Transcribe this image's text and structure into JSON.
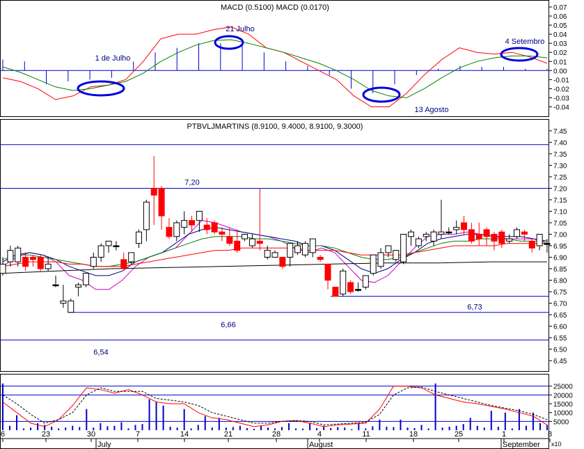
{
  "colors": {
    "border": "#000000",
    "blue": "#0000cc",
    "navy": "#000080",
    "red": "#ff0000",
    "green": "#008000",
    "magenta": "#cc00cc",
    "black": "#000000",
    "ellipse": "#0000dd"
  },
  "panels": {
    "macd": {
      "title": "MACD (0.5100) MACD (0.0170)",
      "annotations": [
        "1 de Julho",
        "21 Julho",
        "13 Agosto",
        "4 Setembro"
      ]
    },
    "price": {
      "title": "PTBVLJMARTINS (8.9100, 9.4000, 8.9100, 9.3000)",
      "levels": [
        {
          "value": 7.39,
          "label": ""
        },
        {
          "value": 7.2,
          "label": "7,20"
        },
        {
          "value": 6.73,
          "label": "6,73"
        },
        {
          "value": 6.66,
          "label": "6,66"
        },
        {
          "value": 6.54,
          "label": "6,54"
        }
      ]
    },
    "volume": {
      "multiplier_label": "x10"
    }
  },
  "x_axis": {
    "tick_labels": [
      "6",
      "23",
      "30",
      "7",
      "14",
      "21",
      "28",
      "4",
      "11",
      "18",
      "25",
      "1",
      "8"
    ],
    "month_labels": [
      "July",
      "August",
      "September"
    ]
  },
  "chart_data": [
    {
      "type": "line",
      "title": "MACD",
      "ylim": [
        -0.045,
        0.07
      ],
      "ticks": [
        0.07,
        0.06,
        0.05,
        0.04,
        0.03,
        0.02,
        0.01,
        0.0,
        -0.01,
        -0.02,
        -0.03,
        -0.04
      ],
      "tick_labels": [
        "0.07",
        "0.06",
        "0.05",
        "0.04",
        "0.03",
        "0.02",
        "0.01",
        "0.00",
        "-0.01",
        "-0.02",
        "-0.03",
        "-0.04"
      ],
      "series": [
        {
          "values": [
            -0.008,
            -0.012,
            -0.02,
            -0.032,
            -0.028,
            -0.018,
            -0.016,
            -0.01,
            0.01,
            0.035,
            0.04,
            0.04,
            0.045,
            0.048,
            0.04,
            0.025,
            0.02,
            0.01,
            0.0,
            -0.01,
            -0.028,
            -0.04,
            -0.04,
            -0.025,
            -0.005,
            0.012,
            0.025,
            0.02,
            0.018,
            0.02,
            0.015,
            0.008
          ]
        },
        {
          "values": [
            0.004,
            -0.002,
            -0.01,
            -0.018,
            -0.022,
            -0.02,
            -0.016,
            -0.012,
            -0.003,
            0.01,
            0.02,
            0.028,
            0.033,
            0.034,
            0.03,
            0.025,
            0.02,
            0.014,
            0.008,
            0.0,
            -0.01,
            -0.022,
            -0.028,
            -0.03,
            -0.02,
            -0.008,
            0.003,
            0.01,
            0.014,
            0.016,
            0.016,
            0.014
          ]
        },
        {
          "values": [
            0.012,
            0.01,
            -0.015,
            -0.012,
            -0.01,
            -0.008,
            0.01,
            0.02,
            0.025,
            0.03,
            0.03,
            0.028,
            0.02,
            0.01,
            0.005,
            -0.005,
            -0.02,
            -0.025,
            -0.015,
            -0.005,
            0.002,
            0.005,
            0.004,
            0.004,
            0.002,
            0.002
          ]
        }
      ]
    },
    {
      "type": "candlestick",
      "title": "PTBVLJMARTINS",
      "ylim": [
        6.42,
        7.48
      ],
      "ticks": [
        7.45,
        7.4,
        7.35,
        7.3,
        7.25,
        7.2,
        7.15,
        7.1,
        7.05,
        7.0,
        6.95,
        6.9,
        6.85,
        6.8,
        6.75,
        6.7,
        6.65,
        6.6,
        6.55,
        6.5,
        6.45
      ],
      "tick_labels": [
        "7.45",
        "7.40",
        "7.35",
        "7.30",
        "7.25",
        "7.20",
        "7.15",
        "7.10",
        "7.05",
        "7.00",
        "6.95",
        "6.90",
        "6.85",
        "6.80",
        "6.75",
        "6.70",
        "6.65",
        "6.60",
        "6.55",
        "6.50",
        "6.45"
      ],
      "candles": [
        {
          "o": 6.83,
          "h": 6.9,
          "l": 6.82,
          "c": 6.87
        },
        {
          "o": 6.88,
          "h": 6.95,
          "l": 6.86,
          "c": 6.93
        },
        {
          "o": 6.88,
          "h": 6.95,
          "l": 6.86,
          "c": 6.94
        },
        {
          "o": 6.9,
          "h": 6.92,
          "l": 6.84,
          "c": 6.86
        },
        {
          "o": 6.9,
          "h": 6.91,
          "l": 6.86,
          "c": 6.89
        },
        {
          "o": 6.9,
          "h": 6.91,
          "l": 6.84,
          "c": 6.85
        },
        {
          "o": 6.85,
          "h": 6.9,
          "l": 6.84,
          "c": 6.87
        },
        {
          "o": 6.78,
          "h": 6.82,
          "l": 6.77,
          "c": 6.78
        },
        {
          "o": 6.7,
          "h": 6.78,
          "l": 6.68,
          "c": 6.71
        },
        {
          "o": 6.66,
          "h": 6.72,
          "l": 6.66,
          "c": 6.71
        },
        {
          "o": 6.77,
          "h": 6.79,
          "l": 6.73,
          "c": 6.78
        },
        {
          "o": 6.78,
          "h": 6.83,
          "l": 6.77,
          "c": 6.83
        },
        {
          "o": 6.86,
          "h": 6.92,
          "l": 6.85,
          "c": 6.9
        },
        {
          "o": 6.9,
          "h": 6.96,
          "l": 6.88,
          "c": 6.95
        },
        {
          "o": 6.95,
          "h": 6.97,
          "l": 6.92,
          "c": 6.97
        },
        {
          "o": 6.95,
          "h": 6.97,
          "l": 6.93,
          "c": 6.95
        },
        {
          "o": 6.89,
          "h": 6.92,
          "l": 6.85,
          "c": 6.85
        },
        {
          "o": 6.88,
          "h": 6.92,
          "l": 6.87,
          "c": 6.92
        },
        {
          "o": 6.96,
          "h": 7.02,
          "l": 6.94,
          "c": 7.01
        },
        {
          "o": 7.02,
          "h": 7.15,
          "l": 6.97,
          "c": 7.14
        },
        {
          "o": 7.2,
          "h": 7.34,
          "l": 7.04,
          "c": 7.17
        },
        {
          "o": 7.2,
          "h": 7.21,
          "l": 7.02,
          "c": 7.08
        },
        {
          "o": 7.03,
          "h": 7.07,
          "l": 6.98,
          "c": 6.99
        },
        {
          "o": 6.99,
          "h": 7.06,
          "l": 6.97,
          "c": 7.05
        },
        {
          "o": 7.03,
          "h": 7.1,
          "l": 7.0,
          "c": 7.06
        },
        {
          "o": 7.06,
          "h": 7.08,
          "l": 7.01,
          "c": 7.04
        },
        {
          "o": 7.06,
          "h": 7.1,
          "l": 7.01,
          "c": 7.1
        },
        {
          "o": 7.04,
          "h": 7.07,
          "l": 7.0,
          "c": 7.02
        },
        {
          "o": 7.05,
          "h": 7.06,
          "l": 7.0,
          "c": 7.01
        },
        {
          "o": 7.01,
          "h": 7.03,
          "l": 6.97,
          "c": 7.0
        },
        {
          "o": 6.99,
          "h": 7.03,
          "l": 6.95,
          "c": 6.96
        },
        {
          "o": 6.97,
          "h": 7.02,
          "l": 6.92,
          "c": 6.93
        },
        {
          "o": 6.98,
          "h": 7.0,
          "l": 6.97,
          "c": 7.0
        },
        {
          "o": 6.95,
          "h": 7.0,
          "l": 6.94,
          "c": 6.98
        },
        {
          "o": 6.97,
          "h": 7.2,
          "l": 6.93,
          "c": 6.96
        },
        {
          "o": 6.9,
          "h": 6.95,
          "l": 6.89,
          "c": 6.93
        },
        {
          "o": 6.9,
          "h": 6.93,
          "l": 6.9,
          "c": 6.92
        },
        {
          "o": 6.9,
          "h": 6.9,
          "l": 6.85,
          "c": 6.86
        },
        {
          "o": 6.9,
          "h": 6.96,
          "l": 6.86,
          "c": 6.96
        },
        {
          "o": 6.92,
          "h": 6.97,
          "l": 6.91,
          "c": 6.95
        },
        {
          "o": 6.91,
          "h": 6.97,
          "l": 6.9,
          "c": 6.96
        },
        {
          "o": 6.92,
          "h": 6.98,
          "l": 6.9,
          "c": 6.98
        },
        {
          "o": 6.9,
          "h": 6.91,
          "l": 6.88,
          "c": 6.89
        },
        {
          "o": 6.87,
          "h": 6.87,
          "l": 6.76,
          "c": 6.8
        },
        {
          "o": 6.77,
          "h": 6.77,
          "l": 6.73,
          "c": 6.73
        },
        {
          "o": 6.74,
          "h": 6.85,
          "l": 6.73,
          "c": 6.84
        },
        {
          "o": 6.79,
          "h": 6.8,
          "l": 6.74,
          "c": 6.75
        },
        {
          "o": 6.76,
          "h": 6.79,
          "l": 6.75,
          "c": 6.76
        },
        {
          "o": 6.77,
          "h": 6.82,
          "l": 6.76,
          "c": 6.82
        },
        {
          "o": 6.83,
          "h": 6.91,
          "l": 6.82,
          "c": 6.91
        },
        {
          "o": 6.86,
          "h": 6.94,
          "l": 6.85,
          "c": 6.92
        },
        {
          "o": 6.92,
          "h": 6.95,
          "l": 6.9,
          "c": 6.95
        },
        {
          "o": 6.89,
          "h": 6.93,
          "l": 6.88,
          "c": 6.93
        },
        {
          "o": 6.88,
          "h": 7.0,
          "l": 6.87,
          "c": 7.0
        },
        {
          "o": 6.99,
          "h": 7.02,
          "l": 6.95,
          "c": 7.01
        },
        {
          "o": 6.95,
          "h": 6.99,
          "l": 6.94,
          "c": 6.98
        },
        {
          "o": 6.99,
          "h": 7.01,
          "l": 6.97,
          "c": 7.0
        },
        {
          "o": 6.97,
          "h": 7.02,
          "l": 6.95,
          "c": 7.01
        },
        {
          "o": 7.0,
          "h": 7.15,
          "l": 6.98,
          "c": 7.01
        },
        {
          "o": 7.01,
          "h": 7.03,
          "l": 7.0,
          "c": 7.01
        },
        {
          "o": 7.02,
          "h": 7.06,
          "l": 7.0,
          "c": 7.03
        },
        {
          "o": 7.05,
          "h": 7.08,
          "l": 7.0,
          "c": 7.02
        },
        {
          "o": 7.02,
          "h": 7.05,
          "l": 6.96,
          "c": 6.97
        },
        {
          "o": 7.0,
          "h": 7.05,
          "l": 6.95,
          "c": 6.98
        },
        {
          "o": 7.02,
          "h": 7.03,
          "l": 6.95,
          "c": 6.99
        },
        {
          "o": 7.0,
          "h": 7.01,
          "l": 6.93,
          "c": 6.97
        },
        {
          "o": 7.01,
          "h": 7.02,
          "l": 6.94,
          "c": 6.96
        },
        {
          "o": 6.97,
          "h": 7.0,
          "l": 6.96,
          "c": 6.98
        },
        {
          "o": 6.99,
          "h": 7.03,
          "l": 6.98,
          "c": 7.02
        },
        {
          "o": 7.01,
          "h": 7.02,
          "l": 6.97,
          "c": 7.0
        },
        {
          "o": 6.97,
          "h": 6.98,
          "l": 6.92,
          "c": 6.94
        },
        {
          "o": 6.95,
          "h": 7.0,
          "l": 6.93,
          "c": 7.0
        },
        {
          "o": 6.96,
          "h": 6.98,
          "l": 6.92,
          "c": 6.96
        }
      ],
      "series": [
        {
          "values": [
            6.86,
            6.9,
            6.92,
            6.91,
            6.88,
            6.82,
            6.8,
            6.76,
            6.76,
            6.8,
            6.86,
            6.9,
            6.92,
            6.94,
            7.0,
            7.06,
            7.05,
            7.03,
            7.01,
            7.0,
            6.99,
            6.97,
            6.94,
            6.92,
            6.94,
            6.92,
            6.86,
            6.8,
            6.79,
            6.82,
            6.88,
            6.94,
            6.99,
            7.0,
            7.0,
            7.01,
            7.0,
            6.99,
            6.98,
            6.98,
            6.98,
            6.96
          ]
        },
        {
          "values": [
            6.88,
            6.91,
            6.92,
            6.91,
            6.89,
            6.86,
            6.84,
            6.82,
            6.82,
            6.84,
            6.88,
            6.9,
            6.92,
            6.96,
            7.0,
            7.02,
            7.03,
            7.02,
            7.01,
            7.0,
            6.99,
            6.98,
            6.97,
            6.95,
            6.95,
            6.93,
            6.89,
            6.85,
            6.83,
            6.85,
            6.89,
            6.92,
            6.96,
            6.98,
            6.99,
            7.0,
            7.0,
            6.99,
            6.99,
            6.99,
            6.98,
            6.97
          ]
        },
        {
          "values": [
            6.89,
            6.91,
            6.91,
            6.9,
            6.89,
            6.88,
            6.87,
            6.86,
            6.86,
            6.87,
            6.88,
            6.9,
            6.92,
            6.94,
            6.96,
            6.98,
            6.99,
            6.99,
            6.99,
            6.98,
            6.98,
            6.97,
            6.96,
            6.95,
            6.95,
            6.94,
            6.92,
            6.9,
            6.89,
            6.89,
            6.9,
            6.92,
            6.94,
            6.96,
            6.97,
            6.97,
            6.98,
            6.98,
            6.98,
            6.97,
            6.97,
            6.97
          ]
        },
        {
          "values": [
            6.86,
            6.87,
            6.88,
            6.88,
            6.88,
            6.87,
            6.87,
            6.86,
            6.86,
            6.86,
            6.87,
            6.88,
            6.89,
            6.9,
            6.91,
            6.92,
            6.93,
            6.93,
            6.94,
            6.94,
            6.94,
            6.94,
            6.94,
            6.93,
            6.93,
            6.93,
            6.92,
            6.91,
            6.91,
            6.91,
            6.91,
            6.92,
            6.93,
            6.94,
            6.95,
            6.95,
            6.95,
            6.95,
            6.96,
            6.96,
            6.96,
            6.96
          ]
        },
        {
          "values": [
            6.83,
            6.84,
            6.85,
            6.855,
            6.86,
            6.865,
            6.87,
            6.875,
            6.875,
            6.88,
            6.88
          ]
        }
      ]
    },
    {
      "type": "bar",
      "title": "Volume",
      "ylim": [
        0,
        30000
      ],
      "ticks": [
        25000,
        20000,
        15000,
        10000,
        5000
      ],
      "tick_labels": [
        "25000",
        "20000",
        "15000",
        "10000",
        "5000"
      ],
      "values": [
        26500,
        2500,
        8500,
        1000,
        1500,
        4000,
        3000,
        2000,
        1000,
        1500,
        2500,
        1800,
        12000,
        1500,
        4000,
        2200,
        2500,
        4500,
        1000,
        3000,
        3500,
        17500,
        16000,
        14000,
        2000,
        1500,
        12000,
        1000,
        3000,
        8000,
        1500,
        7000,
        1500,
        1800,
        2500,
        1200,
        800,
        2500,
        1500,
        1000,
        1800,
        4000,
        1000,
        900,
        4000,
        1200,
        2500,
        1200,
        1800,
        1500,
        600,
        4000,
        1000,
        2200,
        6000,
        2000,
        1800,
        6000,
        1500,
        1200,
        3000,
        1000,
        26500,
        1500,
        2000,
        2500,
        3500,
        7000,
        2500,
        1500,
        11000,
        2000,
        10000,
        1000,
        12000,
        2500,
        10000,
        4000,
        3000
      ],
      "series": [
        {
          "values": [
            16000,
            10000,
            4000,
            2000,
            6000,
            14000,
            24000,
            23000,
            21000,
            23000,
            20000,
            16000,
            15000,
            15000,
            10000,
            7000,
            6000,
            4000,
            2000,
            3000,
            5000,
            5500,
            4000,
            2000,
            3000,
            3500,
            4000,
            12000,
            25000,
            25000,
            24000,
            20000,
            18000,
            16000,
            15000,
            13500,
            12000,
            10000,
            8000,
            3000
          ]
        },
        {
          "values": [
            20000,
            15000,
            9000,
            4000,
            6000,
            10000,
            20000,
            24000,
            22000,
            22000,
            22000,
            18000,
            17000,
            16000,
            14000,
            10000,
            8000,
            6000,
            4000,
            4000,
            5000,
            5500,
            5000,
            3000,
            3500,
            4000,
            4500,
            9000,
            20000,
            24000,
            24500,
            22000,
            20000,
            18000,
            16000,
            14000,
            12500,
            11000,
            9000,
            6000
          ]
        }
      ]
    }
  ]
}
